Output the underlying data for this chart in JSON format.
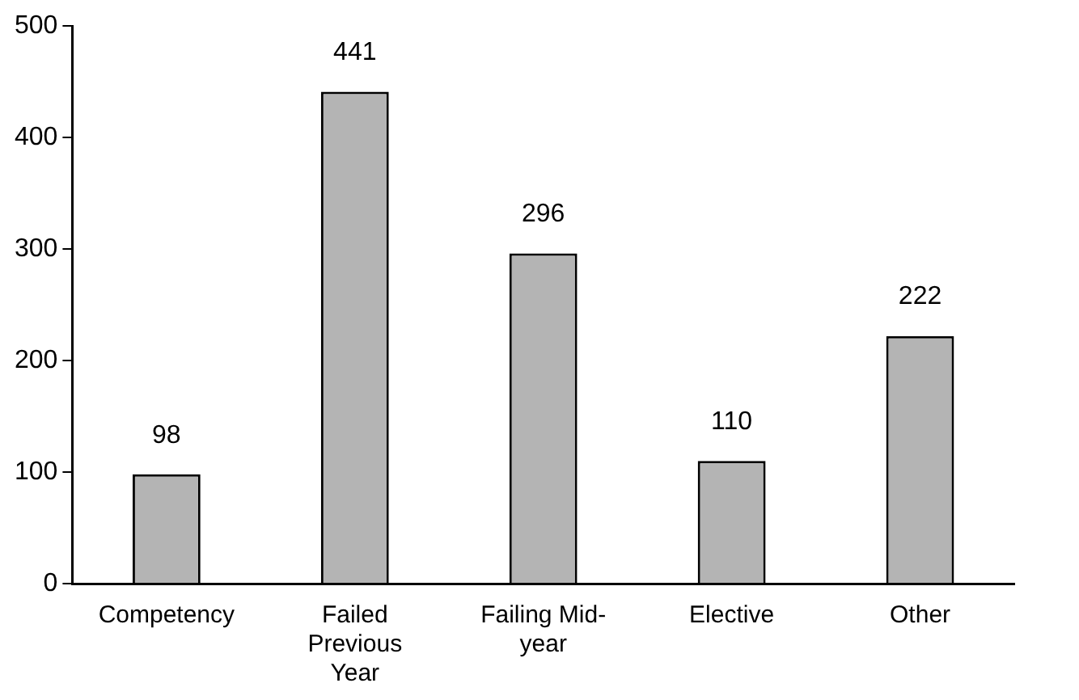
{
  "chart_data": {
    "type": "bar",
    "categories": [
      "Competency",
      "Failed Previous Year",
      "Failing Mid-year",
      "Elective",
      "Other"
    ],
    "values": [
      98,
      441,
      296,
      110,
      222
    ],
    "color": "#b4b4b4",
    "ylim": [
      0,
      500
    ],
    "yticks": [
      0,
      100,
      200,
      300,
      400,
      500
    ],
    "grid": false,
    "legend": false,
    "data_labels": true
  }
}
